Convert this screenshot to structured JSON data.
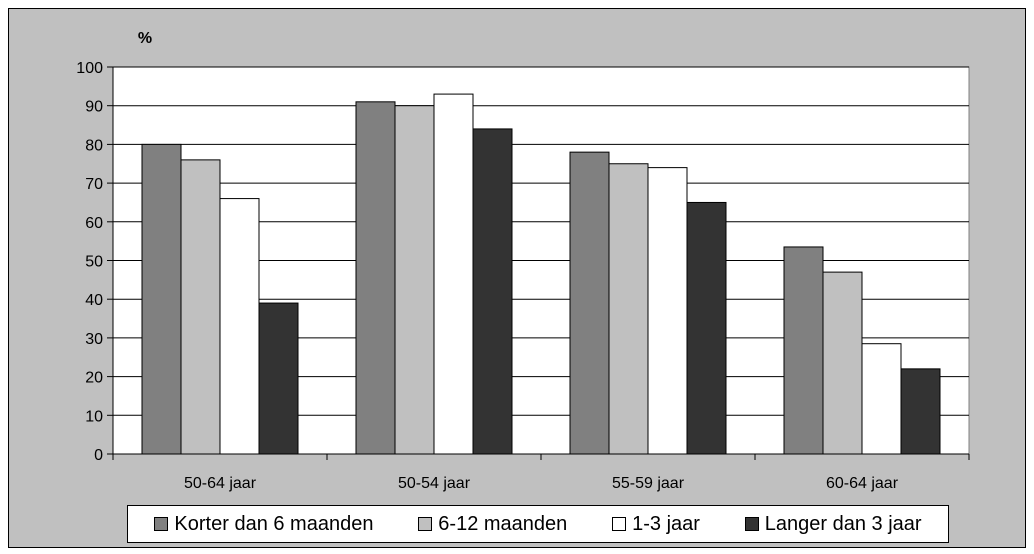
{
  "chart_data": {
    "type": "bar",
    "ylabel": "%",
    "ylim": [
      0,
      100
    ],
    "yticks": [
      "0",
      "10",
      "20",
      "30",
      "40",
      "50",
      "60",
      "70",
      "80",
      "90",
      "100"
    ],
    "categories": [
      "50-64 jaar",
      "50-54 jaar",
      "55-59 jaar",
      "60-64 jaar"
    ],
    "series": [
      {
        "name": "Korter dan 6 maanden",
        "color": "#808080",
        "values": [
          80,
          91,
          78,
          53.5
        ]
      },
      {
        "name": "6-12 maanden",
        "color": "#c0c0c0",
        "values": [
          76,
          90,
          75,
          47
        ]
      },
      {
        "name": "1-3 jaar",
        "color": "#ffffff",
        "values": [
          66,
          93,
          74,
          28.5
        ]
      },
      {
        "name": "Langer dan 3 jaar",
        "color": "#333333",
        "values": [
          39,
          84,
          65,
          22
        ]
      }
    ],
    "grid": true,
    "legend_position": "bottom",
    "background_color": "#c0c0c0",
    "plot_background_color": "#ffffff"
  }
}
